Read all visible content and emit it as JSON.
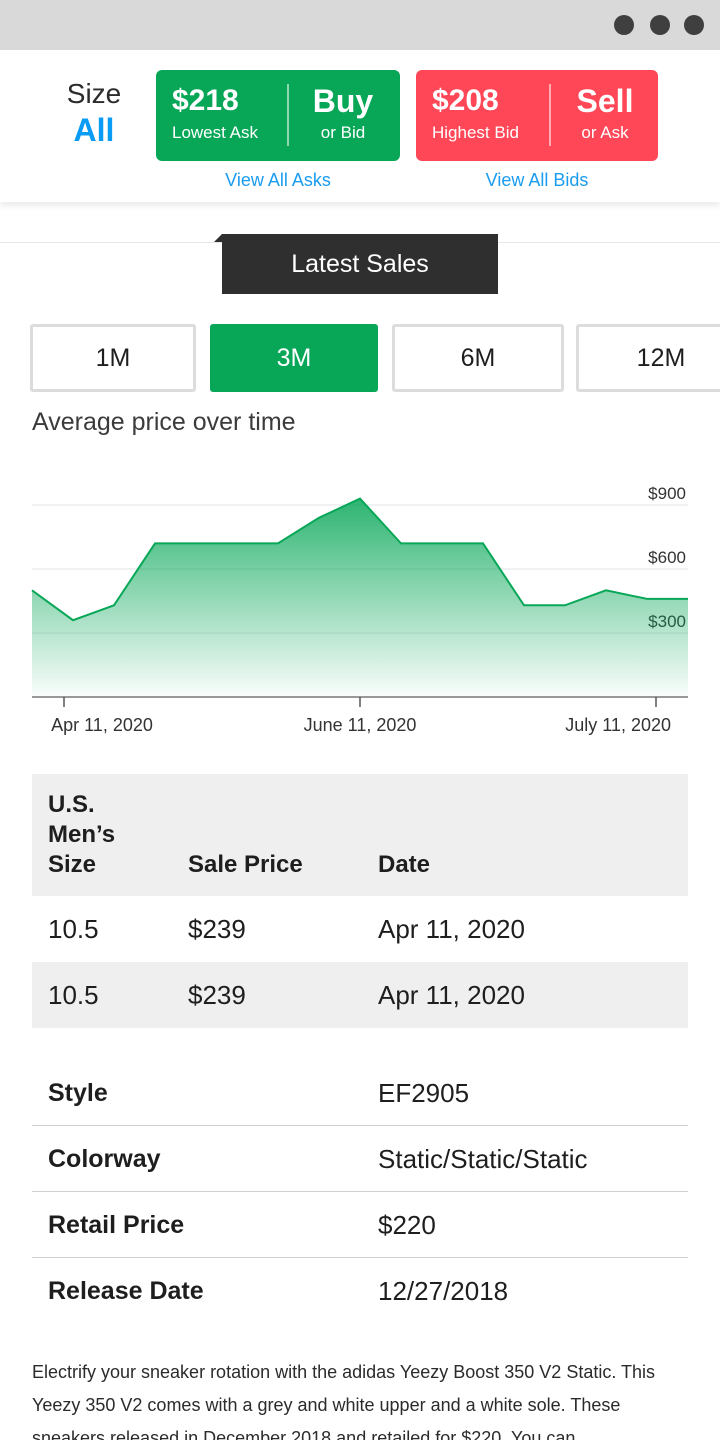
{
  "window": {
    "controls": [
      "dot",
      "dot",
      "dot"
    ]
  },
  "size": {
    "label": "Size",
    "value": "All"
  },
  "buy": {
    "price": "$218",
    "price_label": "Lowest Ask",
    "action": "Buy",
    "action_sub": "or Bid",
    "link": "View All Asks",
    "color": "#08a758"
  },
  "sell": {
    "price": "$208",
    "price_label": "Highest Bid",
    "action": "Sell",
    "action_sub": "or Ask",
    "link": "View All Bids",
    "color": "#ff4757"
  },
  "latest_sales_tab": "Latest Sales",
  "ranges": [
    {
      "label": "1M",
      "active": false
    },
    {
      "label": "3M",
      "active": true
    },
    {
      "label": "6M",
      "active": false
    },
    {
      "label": "12M",
      "active": false
    }
  ],
  "chart_title": "Average price over time",
  "chart_data": {
    "type": "area",
    "title": "",
    "xlabel": "",
    "ylabel": "",
    "x_ticks": [
      "Apr 11, 2020",
      "June 11, 2020",
      "July 11, 2020"
    ],
    "y_ticks": [
      "$900",
      "$600",
      "$300"
    ],
    "y_tick_values": [
      900,
      600,
      300
    ],
    "ylim": [
      0,
      900
    ],
    "values": [
      500,
      360,
      430,
      720,
      720,
      720,
      720,
      840,
      930,
      720,
      720,
      720,
      430,
      430,
      500,
      460,
      460
    ],
    "grid": true,
    "color": "#08a758"
  },
  "sales_table": {
    "headers": [
      "U.S.\nMen’s\nSize",
      "Sale Price",
      "Date"
    ],
    "rows": [
      [
        "10.5",
        "$239",
        "Apr 11, 2020"
      ],
      [
        "10.5",
        "$239",
        "Apr 11, 2020"
      ]
    ]
  },
  "details": [
    {
      "label": "Style",
      "value": "EF2905"
    },
    {
      "label": "Colorway",
      "value": "Static/Static/Static"
    },
    {
      "label": "Retail Price",
      "value": "$220"
    },
    {
      "label": "Release Date",
      "value": "12/27/2018"
    }
  ],
  "description": "Electrify your sneaker rotation with the adidas Yeezy Boost 350 V2 Static. This Yeezy 350 V2 comes with a grey and white upper and a white sole. These sneakers released in December 2018 and retailed for $220. You can"
}
